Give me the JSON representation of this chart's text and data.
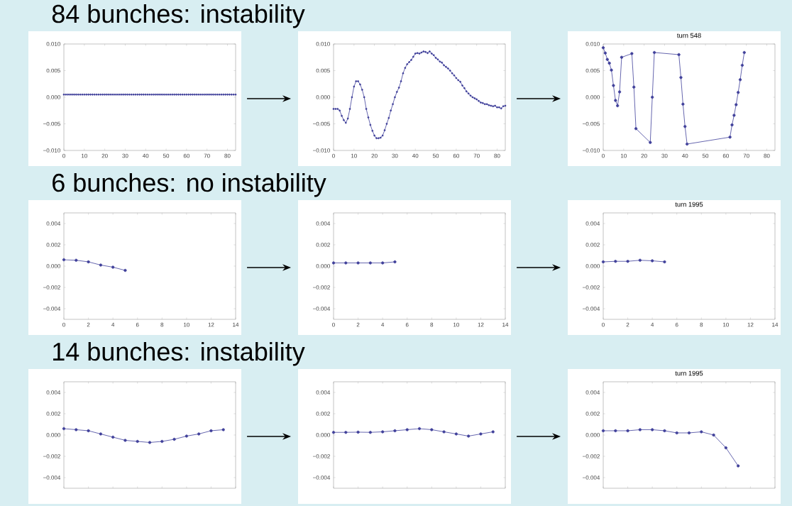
{
  "chart_data": [
    {
      "type": "line",
      "title": "84 bunches: instability",
      "color": "#40409a",
      "marker": "circle",
      "xlim": [
        0,
        84
      ],
      "ylim": [
        -0.01,
        0.01
      ],
      "xticks": [
        0,
        10,
        20,
        30,
        40,
        50,
        60,
        70,
        80
      ],
      "yticks": [
        {
          "value": -0.01,
          "label": "−0.010"
        },
        {
          "value": -0.005,
          "label": "−0.005"
        },
        {
          "value": 0,
          "label": "0.000"
        },
        {
          "value": 0.005,
          "label": "0.005"
        },
        {
          "value": 0.01,
          "label": "0.010"
        }
      ],
      "x": [
        0,
        1,
        2,
        3,
        4,
        5,
        6,
        7,
        8,
        9,
        10,
        11,
        12,
        13,
        14,
        15,
        16,
        17,
        18,
        19,
        20,
        21,
        22,
        23,
        24,
        25,
        26,
        27,
        28,
        29,
        30,
        31,
        32,
        33,
        34,
        35,
        36,
        37,
        38,
        39,
        40,
        41,
        42,
        43,
        44,
        45,
        46,
        47,
        48,
        49,
        50,
        51,
        52,
        53,
        54,
        55,
        56,
        57,
        58,
        59,
        60,
        61,
        62,
        63,
        64,
        65,
        66,
        67,
        68,
        69,
        70,
        71,
        72,
        73,
        74,
        75,
        76,
        77,
        78,
        79,
        80,
        81,
        82,
        83,
        84
      ],
      "values": [
        0.0005,
        0.0005,
        0.0005,
        0.0005,
        0.0005,
        0.0005,
        0.0005,
        0.0005,
        0.0005,
        0.0005,
        0.0005,
        0.0005,
        0.0005,
        0.0005,
        0.0005,
        0.0005,
        0.0005,
        0.0005,
        0.0005,
        0.0005,
        0.0005,
        0.0005,
        0.0005,
        0.0005,
        0.0005,
        0.0005,
        0.0005,
        0.0005,
        0.0005,
        0.0005,
        0.0005,
        0.0005,
        0.0005,
        0.0005,
        0.0005,
        0.0005,
        0.0005,
        0.0005,
        0.0005,
        0.0005,
        0.0005,
        0.0005,
        0.0005,
        0.0005,
        0.0005,
        0.0005,
        0.0005,
        0.0005,
        0.0005,
        0.0005,
        0.0005,
        0.0005,
        0.0005,
        0.0005,
        0.0005,
        0.0005,
        0.0005,
        0.0005,
        0.0005,
        0.0005,
        0.0005,
        0.0005,
        0.0005,
        0.0005,
        0.0005,
        0.0005,
        0.0005,
        0.0005,
        0.0005,
        0.0005,
        0.0005,
        0.0005,
        0.0005,
        0.0005,
        0.0005,
        0.0005,
        0.0005,
        0.0005,
        0.0005,
        0.0005,
        0.0005,
        0.0005,
        0.0005,
        0.0005,
        0.0005
      ]
    },
    {
      "type": "line",
      "color": "#40409a",
      "marker": "circle",
      "xlim": [
        0,
        84
      ],
      "ylim": [
        -0.01,
        0.01
      ],
      "xticks": [
        0,
        10,
        20,
        30,
        40,
        50,
        60,
        70,
        80
      ],
      "yticks": [
        {
          "value": -0.01,
          "label": "−0.010"
        },
        {
          "value": -0.005,
          "label": "−0.005"
        },
        {
          "value": 0,
          "label": "0.000"
        },
        {
          "value": 0.005,
          "label": "0.005"
        },
        {
          "value": 0.01,
          "label": "0.010"
        }
      ],
      "x": [
        0,
        1,
        2,
        3,
        4,
        5,
        6,
        7,
        8,
        9,
        10,
        11,
        12,
        13,
        14,
        15,
        16,
        17,
        18,
        19,
        20,
        21,
        22,
        23,
        24,
        25,
        26,
        27,
        28,
        29,
        30,
        31,
        32,
        33,
        34,
        35,
        36,
        37,
        38,
        39,
        40,
        41,
        42,
        43,
        44,
        45,
        46,
        47,
        48,
        49,
        50,
        51,
        52,
        53,
        54,
        55,
        56,
        57,
        58,
        59,
        60,
        61,
        62,
        63,
        64,
        65,
        66,
        67,
        68,
        69,
        70,
        71,
        72,
        73,
        74,
        75,
        76,
        77,
        78,
        79,
        80,
        81,
        82,
        83,
        84
      ],
      "values": [
        -0.0022,
        -0.0022,
        -0.0022,
        -0.0025,
        -0.0035,
        -0.0043,
        -0.0048,
        -0.004,
        -0.0022,
        0.0,
        0.002,
        0.003,
        0.003,
        0.0024,
        0.0014,
        0.0,
        -0.0022,
        -0.0038,
        -0.0052,
        -0.0063,
        -0.0072,
        -0.0077,
        -0.0077,
        -0.0076,
        -0.0072,
        -0.0062,
        -0.005,
        -0.0039,
        -0.0025,
        -0.0013,
        0.0,
        0.001,
        0.0018,
        0.003,
        0.0045,
        0.0055,
        0.0062,
        0.0066,
        0.007,
        0.0076,
        0.0082,
        0.0083,
        0.0082,
        0.0084,
        0.0086,
        0.0085,
        0.0083,
        0.0086,
        0.0082,
        0.0079,
        0.0074,
        0.0071,
        0.0067,
        0.0065,
        0.006,
        0.0057,
        0.0054,
        0.005,
        0.0045,
        0.0041,
        0.0036,
        0.0032,
        0.0029,
        0.0022,
        0.0017,
        0.0011,
        0.0007,
        0.0003,
        0.0,
        -0.0002,
        -0.0004,
        -0.0007,
        -0.001,
        -0.0011,
        -0.0013,
        -0.0013,
        -0.0015,
        -0.0016,
        -0.0017,
        -0.0016,
        -0.0019,
        -0.0019,
        -0.0021,
        -0.0017,
        -0.0016
      ]
    },
    {
      "type": "line",
      "title": "turn 548",
      "color": "#40409a",
      "marker": "circle",
      "xlim": [
        0,
        84
      ],
      "ylim": [
        -0.01,
        0.01
      ],
      "xticks": [
        0,
        10,
        20,
        30,
        40,
        50,
        60,
        70,
        80
      ],
      "yticks": [
        {
          "value": -0.01,
          "label": "−0.010"
        },
        {
          "value": -0.005,
          "label": "−0.005"
        },
        {
          "value": 0,
          "label": "0.000"
        },
        {
          "value": 0.005,
          "label": "0.005"
        },
        {
          "value": 0.01,
          "label": "0.010"
        }
      ],
      "x": [
        0,
        1,
        2,
        3,
        4,
        5,
        6,
        7,
        8,
        9,
        14,
        15,
        16,
        23,
        24,
        25,
        37,
        38,
        39,
        40,
        41,
        62,
        63,
        64,
        65,
        66,
        67,
        68,
        69
      ],
      "values": [
        0.0093,
        0.0083,
        0.0071,
        0.0064,
        0.0051,
        0.0022,
        -0.0006,
        -0.0016,
        0.001,
        0.0075,
        0.0082,
        0.0019,
        -0.0059,
        -0.0085,
        0.0,
        0.0084,
        0.008,
        0.0037,
        -0.0013,
        -0.0055,
        -0.0088,
        -0.0075,
        -0.0052,
        -0.0034,
        -0.0014,
        0.0009,
        0.0033,
        0.006,
        0.0084
      ]
    },
    {
      "type": "line",
      "title": "6 bunches: no instability",
      "color": "#40409a",
      "marker": "circle",
      "xlim": [
        0,
        14
      ],
      "ylim": [
        -0.005,
        0.005
      ],
      "xticks": [
        0,
        2,
        4,
        6,
        8,
        10,
        12,
        14
      ],
      "yticks": [
        {
          "value": -0.004,
          "label": "−0.004"
        },
        {
          "value": -0.002,
          "label": "−0.002"
        },
        {
          "value": 0,
          "label": "0.000"
        },
        {
          "value": 0.002,
          "label": "0.002"
        },
        {
          "value": 0.004,
          "label": "0.004"
        }
      ],
      "x": [
        0,
        1,
        2,
        3,
        4,
        5
      ],
      "values": [
        0.0006,
        0.00055,
        0.0004,
        0.0001,
        -0.0001,
        -0.0004
      ]
    },
    {
      "type": "line",
      "color": "#40409a",
      "marker": "circle",
      "xlim": [
        0,
        14
      ],
      "ylim": [
        -0.005,
        0.005
      ],
      "xticks": [
        0,
        2,
        4,
        6,
        8,
        10,
        12,
        14
      ],
      "yticks": [
        {
          "value": -0.004,
          "label": "−0.004"
        },
        {
          "value": -0.002,
          "label": "−0.002"
        },
        {
          "value": 0,
          "label": "0.000"
        },
        {
          "value": 0.002,
          "label": "0.002"
        },
        {
          "value": 0.004,
          "label": "0.004"
        }
      ],
      "x": [
        0,
        1,
        2,
        3,
        4,
        5
      ],
      "values": [
        0.0003,
        0.0003,
        0.0003,
        0.0003,
        0.0003,
        0.0004
      ]
    },
    {
      "type": "line",
      "title": "turn 1995",
      "color": "#40409a",
      "marker": "circle",
      "xlim": [
        0,
        14
      ],
      "ylim": [
        -0.005,
        0.005
      ],
      "xticks": [
        0,
        2,
        4,
        6,
        8,
        10,
        12,
        14
      ],
      "yticks": [
        {
          "value": -0.004,
          "label": "−0.004"
        },
        {
          "value": -0.002,
          "label": "−0.002"
        },
        {
          "value": 0,
          "label": "0.000"
        },
        {
          "value": 0.002,
          "label": "0.002"
        },
        {
          "value": 0.004,
          "label": "0.004"
        }
      ],
      "x": [
        0,
        1,
        2,
        3,
        4,
        5
      ],
      "values": [
        0.0004,
        0.00045,
        0.00045,
        0.00055,
        0.0005,
        0.0004
      ]
    },
    {
      "type": "line",
      "title": "14 bunches: instability",
      "color": "#40409a",
      "marker": "circle",
      "tick_labels": "y",
      "xlim": [
        0,
        14
      ],
      "ylim": [
        -0.005,
        0.005
      ],
      "xticks": [
        0,
        2,
        4,
        6,
        8,
        10,
        12,
        14
      ],
      "yticks": [
        {
          "value": -0.004,
          "label": "−0.004"
        },
        {
          "value": -0.002,
          "label": "−0.002"
        },
        {
          "value": 0,
          "label": "0.000"
        },
        {
          "value": 0.002,
          "label": "0.002"
        },
        {
          "value": 0.004,
          "label": "0.004"
        }
      ],
      "x": [
        0,
        1,
        2,
        3,
        4,
        5,
        6,
        7,
        8,
        9,
        10,
        11,
        12,
        13
      ],
      "values": [
        0.0006,
        0.0005,
        0.0004,
        0.0001,
        -0.0002,
        -0.0005,
        -0.0006,
        -0.0007,
        -0.0006,
        -0.0004,
        -0.0001,
        0.0001,
        0.0004,
        0.0005
      ]
    },
    {
      "type": "line",
      "color": "#40409a",
      "marker": "circle",
      "tick_labels": "y",
      "xlim": [
        0,
        14
      ],
      "ylim": [
        -0.005,
        0.005
      ],
      "xticks": [
        0,
        2,
        4,
        6,
        8,
        10,
        12,
        14
      ],
      "yticks": [
        {
          "value": -0.004,
          "label": "−0.004"
        },
        {
          "value": -0.002,
          "label": "−0.002"
        },
        {
          "value": 0,
          "label": "0.000"
        },
        {
          "value": 0.002,
          "label": "0.002"
        },
        {
          "value": 0.004,
          "label": "0.004"
        }
      ],
      "x": [
        0,
        1,
        2,
        3,
        4,
        5,
        6,
        7,
        8,
        9,
        10,
        11,
        12,
        13
      ],
      "values": [
        0.00025,
        0.00025,
        0.00027,
        0.00025,
        0.0003,
        0.0004,
        0.0005,
        0.0006,
        0.0005,
        0.0003,
        0.0001,
        -0.0001,
        0.0001,
        0.0003
      ]
    },
    {
      "type": "line",
      "title": "turn 1995",
      "color": "#40409a",
      "marker": "circle",
      "tick_labels": "y",
      "xlim": [
        0,
        14
      ],
      "ylim": [
        -0.005,
        0.005
      ],
      "xticks": [
        0,
        2,
        4,
        6,
        8,
        10,
        12,
        14
      ],
      "yticks": [
        {
          "value": -0.004,
          "label": "−0.004"
        },
        {
          "value": -0.002,
          "label": "−0.002"
        },
        {
          "value": 0,
          "label": "0.000"
        },
        {
          "value": 0.002,
          "label": "0.002"
        },
        {
          "value": 0.004,
          "label": "0.004"
        }
      ],
      "x": [
        0,
        1,
        2,
        3,
        4,
        5,
        6,
        7,
        8,
        9,
        10,
        11
      ],
      "values": [
        0.0004,
        0.0004,
        0.0004,
        0.0005,
        0.0005,
        0.0004,
        0.0002,
        0.0002,
        0.0003,
        0.0,
        -0.0012,
        -0.0029
      ]
    }
  ]
}
